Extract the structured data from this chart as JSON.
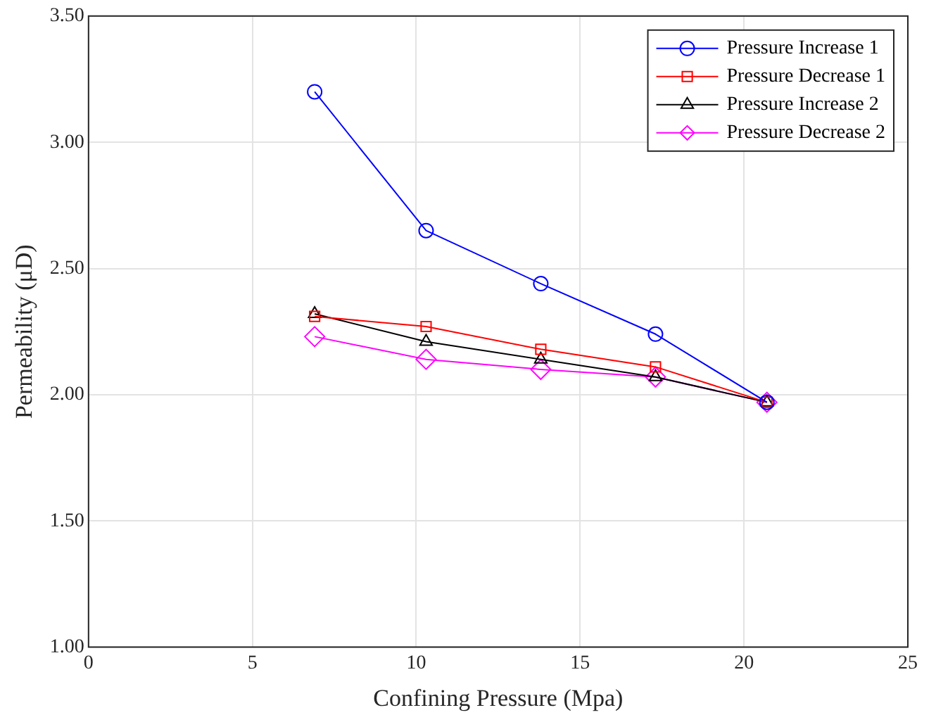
{
  "chart_data": {
    "type": "line",
    "xlabel": "Confining Pressure (Mpa)",
    "ylabel": "Permeability (μD)",
    "x": [
      6.9,
      10.3,
      13.8,
      17.3,
      20.7
    ],
    "xlim": [
      0,
      25
    ],
    "xticks": [
      0,
      5,
      10,
      15,
      20,
      25
    ],
    "ylim": [
      1,
      3.5
    ],
    "yticks": [
      {
        "value": 1,
        "label": "1.00"
      },
      {
        "value": 1.5,
        "label": "1.50"
      },
      {
        "value": 2,
        "label": "2.00"
      },
      {
        "value": 2.5,
        "label": "2.50"
      },
      {
        "value": 3,
        "label": "3.00"
      },
      {
        "value": 3.5,
        "label": "3.50"
      }
    ],
    "grid": true,
    "legend": "top right",
    "line_style": "solid",
    "series": [
      {
        "name": "Pressure Increase 1",
        "color": "#0000ff",
        "marker": "circle",
        "values": [
          3.2,
          2.65,
          2.44,
          2.24,
          1.97
        ]
      },
      {
        "name": "Pressure Decrease 1",
        "color": "#ff0000",
        "marker": "square",
        "values": [
          2.31,
          2.27,
          2.18,
          2.11,
          1.97
        ]
      },
      {
        "name": "Pressure Increase 2",
        "color": "#000000",
        "marker": "triangle",
        "values": [
          2.32,
          2.21,
          2.14,
          2.07,
          1.97
        ]
      },
      {
        "name": "Pressure Decrease 2",
        "color": "#ff00ff",
        "marker": "diamond",
        "values": [
          2.23,
          2.14,
          2.1,
          2.07,
          1.97
        ]
      }
    ]
  }
}
